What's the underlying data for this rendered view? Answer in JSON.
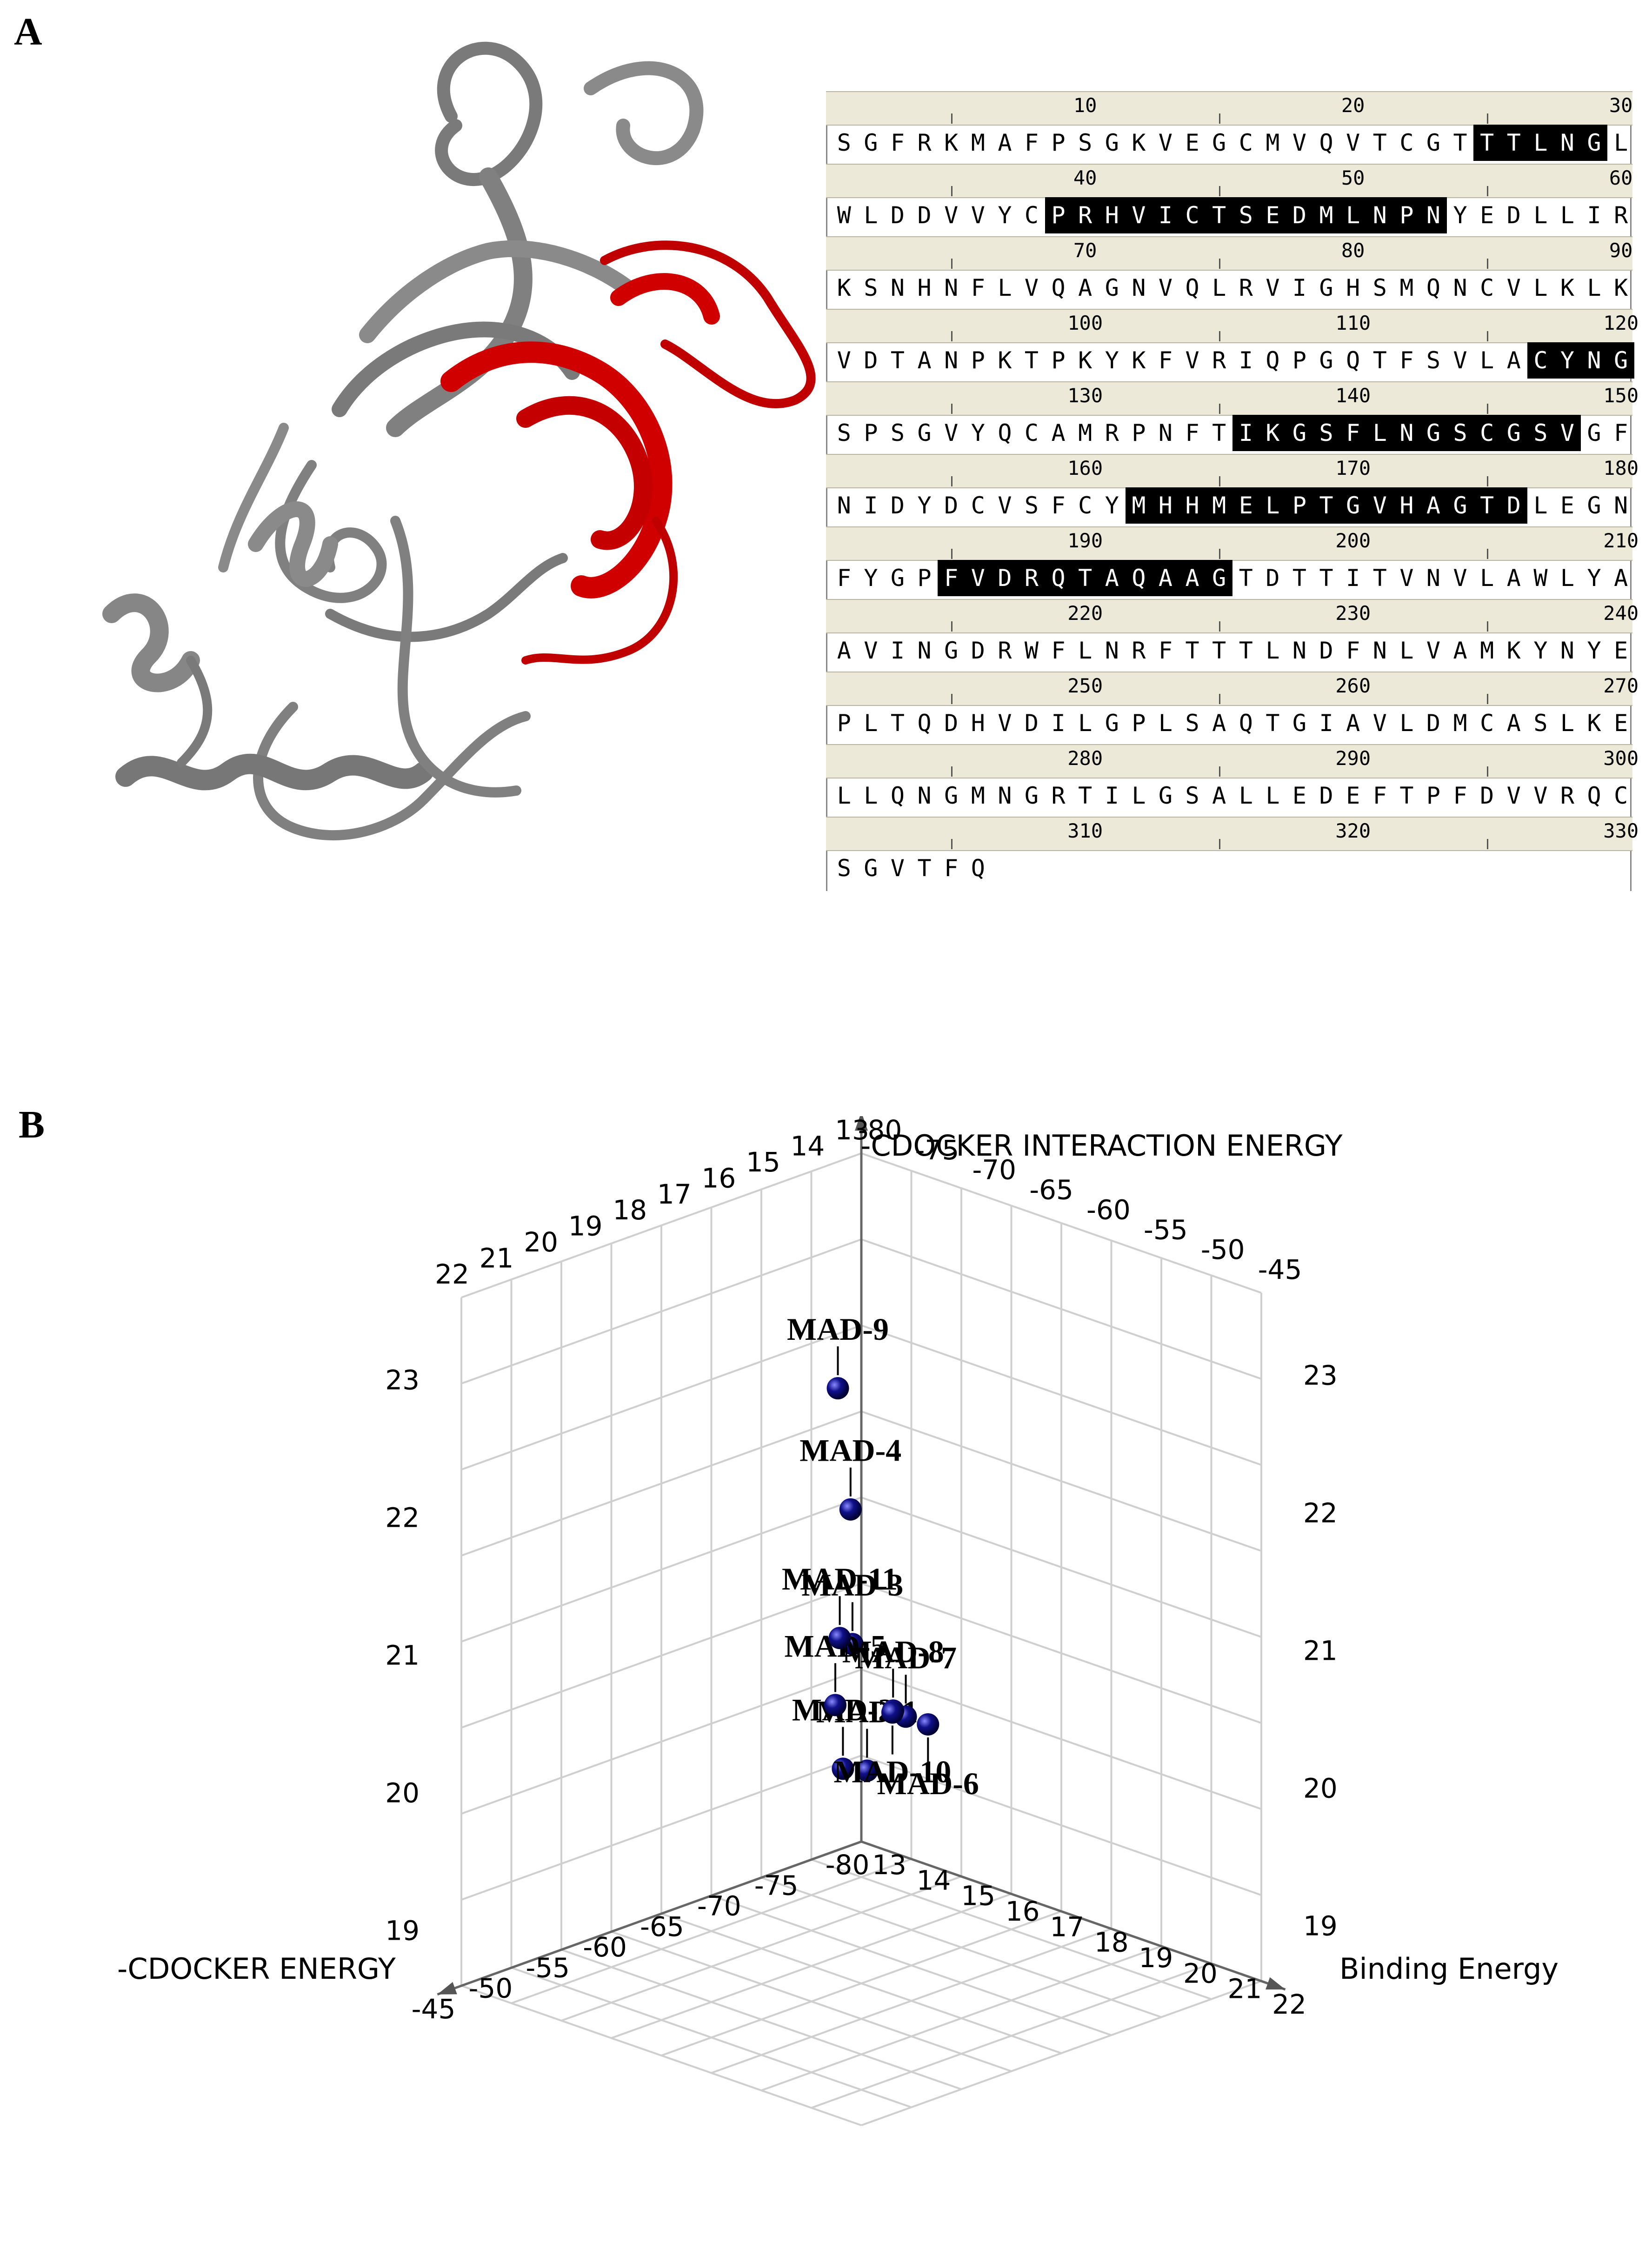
{
  "panels": {
    "a": "A",
    "b": "B"
  },
  "colors": {
    "ribbon": "#7a7a7a",
    "highlight": "#d10000",
    "sphere": "#10108a",
    "grid": "#cfcfcf",
    "ruler_bg": "#ece9d8"
  },
  "sequence": {
    "ruler_numbers": [
      "10",
      "20",
      "30",
      "40",
      "50",
      "60",
      "70",
      "80",
      "90",
      "100",
      "110",
      "120",
      "130",
      "140",
      "150",
      "160",
      "170",
      "180",
      "190",
      "200",
      "210",
      "220",
      "230",
      "240",
      "250",
      "260",
      "270",
      "280",
      "290",
      "300",
      "310",
      "320",
      "330"
    ],
    "lines": [
      "SGFRKMAFPSGKVEGCMVQVTCGTTTLNGL",
      "WLDDVVYCPRHVICTSEDMLNPNYEDLLIR",
      "KSNHNFLVQAGNVQLRVIGHSMQNCVLKLK",
      "VDTANPKTPKYKFVRIQPGQTFSVLACYNG",
      "SPSGVYQCAMRPNFTIKGSFLNGSCGSVGF",
      "NIDYDCVSFCYMHHMELPTGVHAGTDLEGN",
      "FYGPFVDRQTAQAAGTDTTITVNVLAWLYA",
      "AVINGDRWFLNRFTTTLNDFNLVAMKYNYE",
      "PLTQDHVDILGPLSAQTGIAVLDMCASLKE",
      "LLQNGMNGRTILGSALLEDEFTPFDVVRQC",
      "SGVTFQ"
    ],
    "highlighted_ranges": [
      [
        24,
        28
      ],
      [
        38,
        52
      ],
      [
        116,
        119
      ],
      [
        135,
        147
      ],
      [
        161,
        175
      ],
      [
        184,
        194
      ]
    ]
  },
  "plot3d": {
    "axis_labels": {
      "vertical": "-CDOCKER INTERACTION ENERGY",
      "left": "-CDOCKER ENERGY",
      "right": "Binding Energy"
    }
  },
  "chart_data": {
    "type": "scatter",
    "title": "",
    "xlabel": "-CDOCKER ENERGY",
    "ylabel": "Binding Energy",
    "zlabel": "-CDOCKER INTERACTION ENERGY",
    "x_ticks": [
      "-80",
      "-75",
      "-70",
      "-65",
      "-60",
      "-55",
      "-50",
      "-45"
    ],
    "y_ticks": [
      "13",
      "14",
      "15",
      "16",
      "17",
      "18",
      "19",
      "20",
      "21",
      "22"
    ],
    "z_ticks": [
      "19",
      "20",
      "21",
      "22",
      "23"
    ],
    "back_left_ticks": [
      "13",
      "14",
      "15",
      "16",
      "17",
      "18",
      "19",
      "20",
      "21",
      "22"
    ],
    "back_right_ticks": [
      "-80",
      "-75",
      "-70",
      "-65",
      "-60",
      "-55",
      "-50",
      "-45"
    ],
    "side_ticks_left": [
      "23",
      "22",
      "21",
      "20",
      "19"
    ],
    "side_ticks_right": [
      "23",
      "22",
      "21",
      "20",
      "19"
    ],
    "points": [
      {
        "name": "MAD-1",
        "x": -62,
        "y": 17.5,
        "z": 20.1
      },
      {
        "name": "MAD-2",
        "x": -68,
        "y": 18.5,
        "z": 20.4
      },
      {
        "name": "MAD-3",
        "x": -73,
        "y": 20.0,
        "z": 21.6
      },
      {
        "name": "MAD-4",
        "x": -79,
        "y": 21.5,
        "z": 22.9
      },
      {
        "name": "MAD-5",
        "x": -57,
        "y": 15.5,
        "z": 20.2
      },
      {
        "name": "MAD-6",
        "x": -45,
        "y": 14.5,
        "z": 19.6
      },
      {
        "name": "MAD-7",
        "x": -45,
        "y": 14.0,
        "z": 19.6
      },
      {
        "name": "MAD-8",
        "x": -50,
        "y": 15.0,
        "z": 19.9
      },
      {
        "name": "MAD-9",
        "x": -49,
        "y": 13.5,
        "z": 22.0
      },
      {
        "name": "MAD-10",
        "x": -52,
        "y": 15.5,
        "z": 20.0
      },
      {
        "name": "MAD-11",
        "x": -78,
        "y": 21.0,
        "z": 21.9
      }
    ]
  }
}
